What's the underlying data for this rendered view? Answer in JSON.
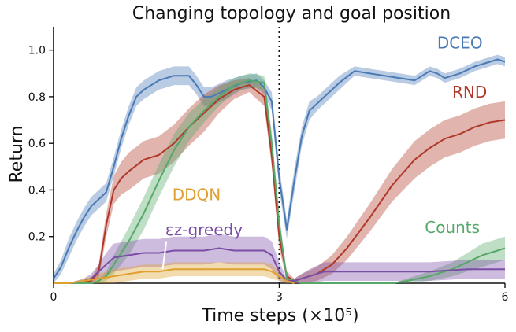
{
  "chart_data": {
    "type": "line",
    "title": "Changing topology and goal position",
    "xlabel": "Time steps (×10⁵)",
    "ylabel": "Return",
    "xlim": [
      0,
      6
    ],
    "ylim": [
      0,
      1.1
    ],
    "x_ticks": [
      "0",
      "3",
      "6"
    ],
    "y_ticks": [
      "0.2",
      "0.4",
      "0.6",
      "0.8",
      "1.0"
    ],
    "grid": false,
    "legend": "inline labels",
    "vertical_line": {
      "x": 3,
      "style": "dotted"
    },
    "series": [
      {
        "name": "DCEO",
        "color": "#4a7ab5",
        "x": [
          0,
          0.1,
          0.2,
          0.3,
          0.4,
          0.5,
          0.6,
          0.7,
          0.8,
          0.9,
          1.0,
          1.1,
          1.2,
          1.4,
          1.6,
          1.8,
          1.9,
          2.0,
          2.1,
          2.3,
          2.5,
          2.7,
          2.8,
          2.9,
          3.0,
          3.1,
          3.2,
          3.3,
          3.4,
          3.5,
          3.6,
          3.7,
          3.8,
          4.0,
          4.2,
          4.4,
          4.6,
          4.8,
          5.0,
          5.1,
          5.2,
          5.4,
          5.6,
          5.8,
          5.9,
          6.0
        ],
        "y": [
          0.02,
          0.07,
          0.15,
          0.22,
          0.28,
          0.33,
          0.36,
          0.39,
          0.5,
          0.62,
          0.72,
          0.8,
          0.83,
          0.87,
          0.89,
          0.89,
          0.85,
          0.8,
          0.8,
          0.83,
          0.86,
          0.87,
          0.84,
          0.78,
          0.45,
          0.23,
          0.44,
          0.63,
          0.74,
          0.77,
          0.8,
          0.83,
          0.86,
          0.91,
          0.9,
          0.89,
          0.88,
          0.87,
          0.91,
          0.9,
          0.88,
          0.9,
          0.93,
          0.95,
          0.96,
          0.95
        ],
        "band": [
          0.02,
          0.03,
          0.04,
          0.04,
          0.04,
          0.04,
          0.04,
          0.04,
          0.04,
          0.04,
          0.04,
          0.04,
          0.04,
          0.04,
          0.04,
          0.04,
          0.04,
          0.04,
          0.04,
          0.04,
          0.03,
          0.03,
          0.03,
          0.04,
          0.05,
          0.04,
          0.05,
          0.04,
          0.04,
          0.03,
          0.03,
          0.03,
          0.03,
          0.02,
          0.02,
          0.02,
          0.02,
          0.02,
          0.02,
          0.02,
          0.02,
          0.02,
          0.02,
          0.02,
          0.02,
          0.02
        ]
      },
      {
        "name": "RND",
        "color": "#b0392b",
        "x": [
          0,
          0.3,
          0.5,
          0.6,
          0.7,
          0.8,
          0.9,
          1.0,
          1.2,
          1.4,
          1.6,
          1.8,
          2.0,
          2.2,
          2.4,
          2.6,
          2.8,
          2.9,
          3.0,
          3.1,
          3.2,
          3.3,
          3.5,
          3.7,
          3.9,
          4.2,
          4.5,
          4.8,
          5.0,
          5.2,
          5.4,
          5.6,
          5.8,
          6.0
        ],
        "y": [
          0,
          0,
          0.01,
          0.05,
          0.25,
          0.4,
          0.45,
          0.48,
          0.53,
          0.55,
          0.6,
          0.67,
          0.73,
          0.79,
          0.83,
          0.85,
          0.8,
          0.55,
          0.2,
          0.03,
          0.01,
          0.02,
          0.04,
          0.08,
          0.15,
          0.28,
          0.42,
          0.53,
          0.58,
          0.62,
          0.64,
          0.67,
          0.69,
          0.7
        ],
        "band": [
          0,
          0,
          0.01,
          0.03,
          0.05,
          0.06,
          0.07,
          0.08,
          0.08,
          0.08,
          0.08,
          0.08,
          0.08,
          0.06,
          0.04,
          0.03,
          0.04,
          0.05,
          0.05,
          0.02,
          0.01,
          0.02,
          0.03,
          0.04,
          0.05,
          0.06,
          0.07,
          0.08,
          0.08,
          0.08,
          0.08,
          0.08,
          0.08,
          0.08
        ]
      },
      {
        "name": "Counts",
        "color": "#55a868",
        "x": [
          0,
          0.5,
          0.6,
          0.7,
          0.8,
          0.9,
          1.0,
          1.2,
          1.4,
          1.6,
          1.8,
          2.0,
          2.2,
          2.4,
          2.6,
          2.8,
          2.9,
          3.0,
          3.1,
          3.3,
          3.5,
          4.0,
          4.3,
          4.5,
          4.7,
          5.0,
          5.3,
          5.5,
          5.7,
          5.9,
          6.0
        ],
        "y": [
          0,
          0,
          0.01,
          0.03,
          0.08,
          0.13,
          0.18,
          0.3,
          0.44,
          0.57,
          0.67,
          0.74,
          0.8,
          0.85,
          0.87,
          0.86,
          0.6,
          0.25,
          0.02,
          0,
          0,
          0,
          0,
          0,
          0.01,
          0.03,
          0.06,
          0.09,
          0.12,
          0.14,
          0.15
        ],
        "band": [
          0,
          0,
          0.01,
          0.02,
          0.04,
          0.05,
          0.06,
          0.07,
          0.07,
          0.07,
          0.06,
          0.05,
          0.04,
          0.03,
          0.03,
          0.03,
          0.05,
          0.05,
          0.01,
          0,
          0,
          0,
          0,
          0,
          0.01,
          0.02,
          0.03,
          0.04,
          0.05,
          0.05,
          0.05
        ]
      },
      {
        "name": "εz-greedy",
        "color": "#7b4ea6",
        "x": [
          0,
          0.2,
          0.4,
          0.5,
          0.6,
          0.7,
          0.8,
          1.0,
          1.2,
          1.4,
          1.6,
          1.8,
          2.0,
          2.2,
          2.4,
          2.6,
          2.8,
          2.9,
          3.0,
          3.1,
          3.2,
          3.4,
          3.6,
          4.0,
          4.5,
          5.0,
          5.5,
          6.0
        ],
        "y": [
          0,
          0,
          0.01,
          0.02,
          0.05,
          0.08,
          0.11,
          0.12,
          0.13,
          0.13,
          0.14,
          0.14,
          0.14,
          0.15,
          0.14,
          0.14,
          0.14,
          0.12,
          0.05,
          0.01,
          0.01,
          0.03,
          0.05,
          0.05,
          0.05,
          0.05,
          0.06,
          0.06
        ],
        "band": [
          0,
          0,
          0.01,
          0.02,
          0.03,
          0.05,
          0.06,
          0.06,
          0.06,
          0.06,
          0.06,
          0.06,
          0.06,
          0.06,
          0.06,
          0.06,
          0.06,
          0.06,
          0.04,
          0.01,
          0.01,
          0.03,
          0.04,
          0.04,
          0.04,
          0.04,
          0.04,
          0.04
        ]
      },
      {
        "name": "DDQN",
        "color": "#e0a030",
        "x": [
          0,
          0.2,
          0.4,
          0.6,
          0.8,
          1.0,
          1.2,
          1.4,
          1.6,
          1.8,
          2.0,
          2.2,
          2.4,
          2.6,
          2.8,
          2.9,
          3.0,
          3.1,
          3.2
        ],
        "y": [
          0,
          0,
          0.01,
          0.02,
          0.03,
          0.04,
          0.05,
          0.05,
          0.06,
          0.06,
          0.06,
          0.06,
          0.06,
          0.06,
          0.06,
          0.05,
          0.03,
          0.01,
          0
        ],
        "band": [
          0,
          0,
          0.01,
          0.02,
          0.03,
          0.03,
          0.03,
          0.03,
          0.03,
          0.03,
          0.03,
          0.03,
          0.03,
          0.03,
          0.03,
          0.03,
          0.02,
          0.01,
          0
        ]
      }
    ]
  }
}
